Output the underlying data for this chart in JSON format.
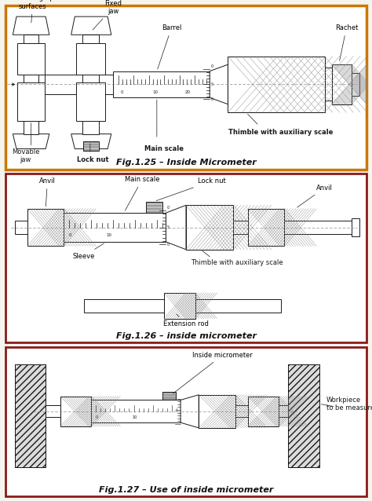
{
  "fig_title1": "Fig.1.25 – Inside Micrometer",
  "fig_title2": "Fig.1.26 – inside micrometer",
  "fig_title3": "Fig.1.27 – Use of inside micrometer",
  "border1_color": "#CC7700",
  "border2_color": "#8B1A1A",
  "border3_color": "#8B1A1A",
  "bg_color": "#F5F5F0",
  "line_color": "#1A1A1A",
  "label_fontsize": 6.0,
  "title_fontsize": 8.0
}
